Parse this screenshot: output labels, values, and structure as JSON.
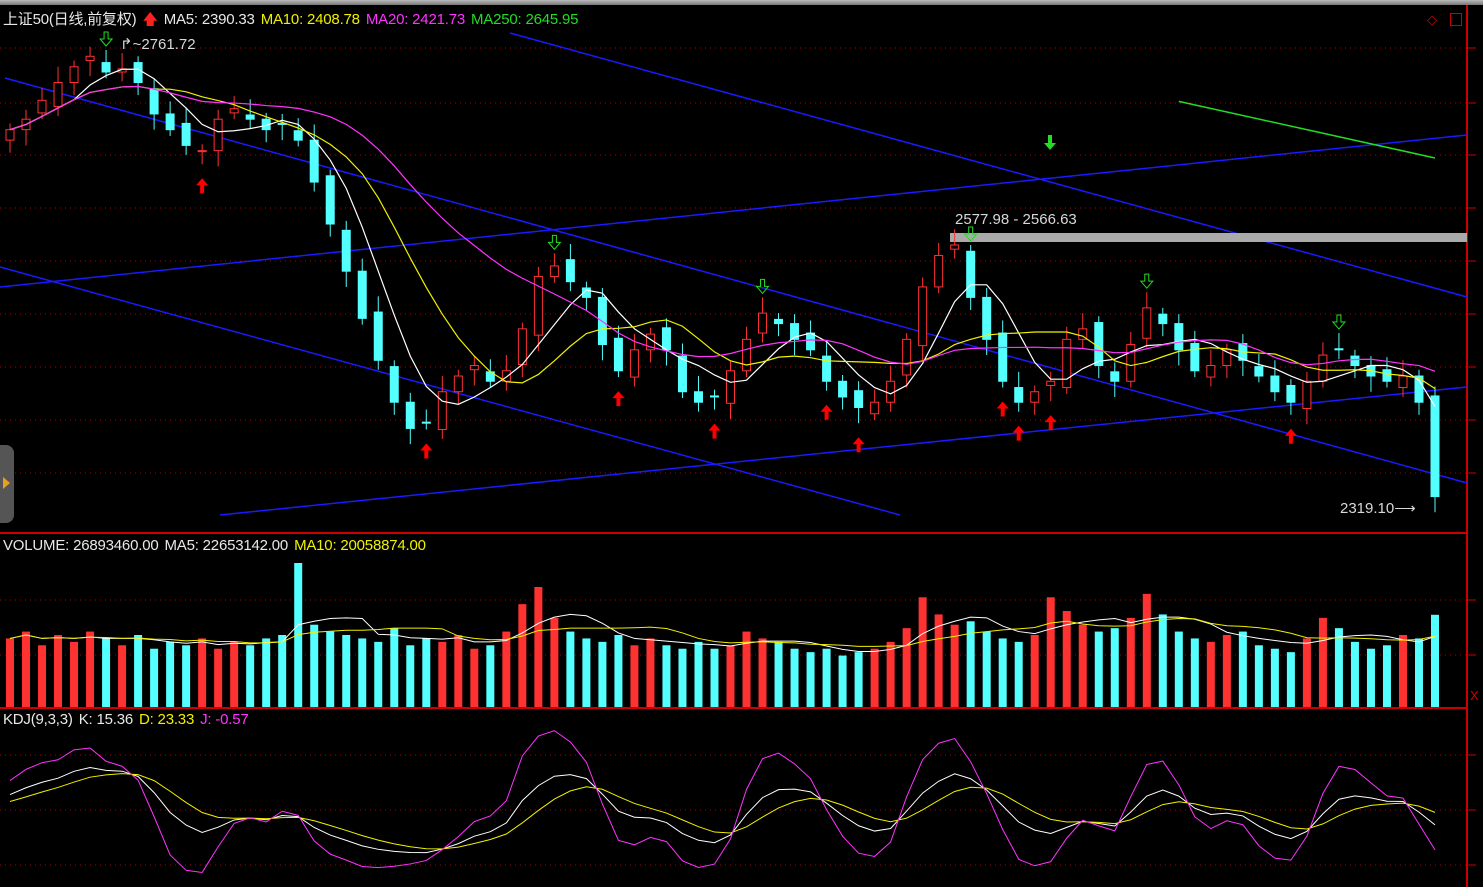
{
  "main": {
    "title": "上证50(日线,前复权)",
    "ma5": "MA5: 2390.33",
    "ma10": "MA10: 2408.78",
    "ma20": "MA20: 2421.73",
    "ma250": "MA250: 2645.95",
    "high_label": "2761.72",
    "low_label": "2319.10",
    "range_label": "2577.98 - 2566.63"
  },
  "volume": {
    "label": "VOLUME: 26893460.00",
    "ma5": "MA5: 22653142.00",
    "ma10": "MA10: 20058874.00"
  },
  "kdj": {
    "label": "KDJ(9,3,3)",
    "k": "K: 15.36",
    "d": "D: 23.33",
    "j": "J: -0.57"
  },
  "colors": {
    "up": "#ff3232",
    "down": "#54ffff",
    "ma5": "#ffffff",
    "ma10": "#f0f000",
    "ma20": "#ff33ff",
    "ma250": "#22dd22",
    "trendline": "#1a1aff",
    "grid": "#b00000"
  },
  "chart_data": {
    "type": "candlestick",
    "price_range": [
      2319.1,
      2761.72
    ],
    "closes": [
      2680,
      2690,
      2708,
      2725,
      2740,
      2750,
      2735,
      2738,
      2725,
      2695,
      2680,
      2665,
      2660,
      2690,
      2700,
      2690,
      2680,
      2685,
      2670,
      2630,
      2590,
      2545,
      2500,
      2460,
      2420,
      2395,
      2400,
      2430,
      2445,
      2455,
      2440,
      2450,
      2490,
      2540,
      2550,
      2535,
      2520,
      2475,
      2450,
      2470,
      2485,
      2470,
      2430,
      2420,
      2425,
      2450,
      2480,
      2505,
      2495,
      2480,
      2470,
      2440,
      2425,
      2415,
      2420,
      2440,
      2480,
      2530,
      2560,
      2570,
      2520,
      2480,
      2440,
      2420,
      2430,
      2440,
      2480,
      2490,
      2455,
      2440,
      2475,
      2510,
      2495,
      2470,
      2450,
      2455,
      2470,
      2460,
      2445,
      2430,
      2420,
      2440,
      2465,
      2470,
      2455,
      2445,
      2440,
      2445,
      2420,
      2330
    ],
    "volumes": [
      20000000.0,
      22000000.0,
      18000000.0,
      21000000.0,
      19000000.0,
      22000000.0,
      20000000.0,
      18000000.0,
      21000000.0,
      17000000.0,
      19000000.0,
      18000000.0,
      20000000.0,
      17000000.0,
      19000000.0,
      18000000.0,
      20000000.0,
      21000000.0,
      42000000.0,
      24000000.0,
      22000000.0,
      21000000.0,
      20000000.0,
      19000000.0,
      23000000.0,
      18000000.0,
      20000000.0,
      19000000.0,
      21000000.0,
      17000000.0,
      18000000.0,
      22000000.0,
      30000000.0,
      35000000.0,
      26000000.0,
      22000000.0,
      20000000.0,
      19000000.0,
      21000000.0,
      18000000.0,
      20000000.0,
      18000000.0,
      17000000.0,
      19000000.0,
      17000000.0,
      18000000.0,
      22000000.0,
      20000000.0,
      19000000.0,
      17000000.0,
      16000000.0,
      17000000.0,
      15000000.0,
      16000000.0,
      17000000.0,
      19000000.0,
      23000000.0,
      32000000.0,
      27000000.0,
      24000000.0,
      25000000.0,
      22000000.0,
      20000000.0,
      19000000.0,
      21000000.0,
      32000000.0,
      28000000.0,
      24000000.0,
      22000000.0,
      23000000.0,
      26000000.0,
      33000000.0,
      27000000.0,
      22000000.0,
      20000000.0,
      19000000.0,
      21000000.0,
      22000000.0,
      18000000.0,
      17000000.0,
      16000000.0,
      20000000.0,
      26000000.0,
      23000000.0,
      19000000.0,
      17000000.0,
      18000000.0,
      21000000.0,
      20000000.0,
      26893460.0
    ],
    "ma250_visible": {
      "from_index": 73,
      "to_index": 89,
      "values": [
        2707,
        2653
      ]
    },
    "indicators": [
      "MA5",
      "MA10",
      "MA20",
      "MA250",
      "VOLUME MA5",
      "VOLUME MA10",
      "KDJ(9,3,3)"
    ],
    "buy_signal_indices": [
      12,
      26,
      38,
      44,
      51,
      53,
      62,
      63,
      65,
      80
    ],
    "sell_signal_indices": [
      6,
      34,
      47,
      60,
      71,
      83
    ],
    "grid": true
  }
}
